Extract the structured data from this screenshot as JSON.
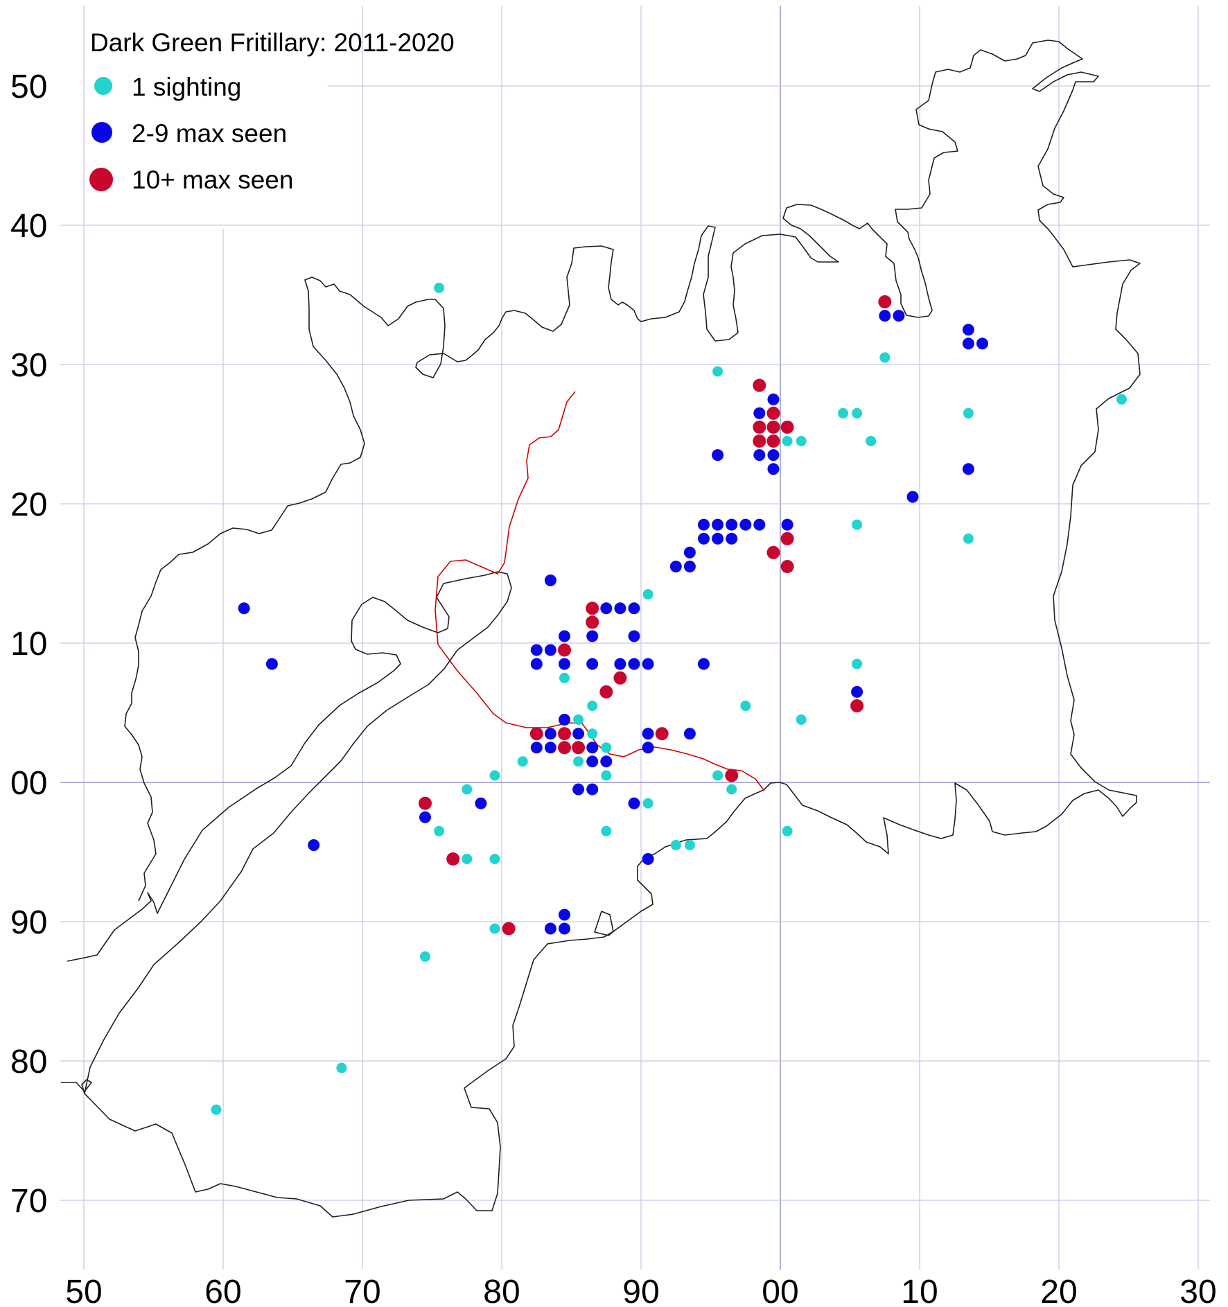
{
  "map": {
    "title": "Dark Green Fritillary:  2011-2020",
    "x_ticks": [
      "50",
      "60",
      "70",
      "80",
      "90",
      "00",
      "10",
      "20",
      "30"
    ],
    "y_ticks": [
      "50",
      "40",
      "30",
      "20",
      "10",
      "00",
      "90",
      "80",
      "70"
    ],
    "categories": [
      {
        "key": "one",
        "label": "1 sighting",
        "color": "#22d3d0"
      },
      {
        "key": "few",
        "label": "2-9 max seen",
        "color": "#0a07e6"
      },
      {
        "key": "many",
        "label": "10+ max seen",
        "color": "#c8072e"
      }
    ],
    "grid_color": "#c8cbe6",
    "boundary_color": "#222222",
    "county_line_color": "#d00000",
    "records": {
      "one": [
        [
          75.5,
          35.5
        ],
        [
          95.5,
          29.5
        ],
        [
          107.5,
          30.5
        ],
        [
          104.5,
          26.5
        ],
        [
          105.5,
          26.5
        ],
        [
          106.5,
          24.5
        ],
        [
          113.5,
          26.5
        ],
        [
          124.5,
          27.5
        ],
        [
          100.5,
          24.5
        ],
        [
          101.5,
          24.5
        ],
        [
          105.5,
          18.5
        ],
        [
          113.5,
          17.5
        ],
        [
          90.5,
          13.5
        ],
        [
          84.5,
          7.5
        ],
        [
          86.5,
          5.5
        ],
        [
          85.5,
          4.5
        ],
        [
          86.5,
          3.5
        ],
        [
          87.5,
          2.5
        ],
        [
          81.5,
          1.5
        ],
        [
          85.5,
          1.5
        ],
        [
          87.5,
          0.5
        ],
        [
          79.5,
          0.5
        ],
        [
          77.5,
          -0.5
        ],
        [
          75.5,
          -3.5
        ],
        [
          77.5,
          -5.5
        ],
        [
          79.5,
          -5.5
        ],
        [
          87.5,
          -3.5
        ],
        [
          90.5,
          -1.5
        ],
        [
          92.5,
          -4.5
        ],
        [
          93.5,
          -4.5
        ],
        [
          95.5,
          0.5
        ],
        [
          96.5,
          -0.5
        ],
        [
          97.5,
          5.5
        ],
        [
          101.5,
          4.5
        ],
        [
          105.5,
          8.5
        ],
        [
          100.5,
          -3.5
        ],
        [
          79.5,
          -10.5
        ],
        [
          74.5,
          -12.5
        ],
        [
          68.5,
          -20.5
        ],
        [
          59.5,
          -23.5
        ]
      ],
      "few": [
        [
          107.5,
          33.5
        ],
        [
          108.5,
          33.5
        ],
        [
          113.5,
          32.5
        ],
        [
          113.5,
          31.5
        ],
        [
          114.5,
          31.5
        ],
        [
          99.5,
          27.5
        ],
        [
          98.5,
          26.5
        ],
        [
          98.5,
          23.5
        ],
        [
          99.5,
          23.5
        ],
        [
          99.5,
          22.5
        ],
        [
          95.5,
          23.5
        ],
        [
          113.5,
          22.5
        ],
        [
          109.5,
          20.5
        ],
        [
          94.5,
          18.5
        ],
        [
          95.5,
          18.5
        ],
        [
          96.5,
          18.5
        ],
        [
          97.5,
          18.5
        ],
        [
          98.5,
          18.5
        ],
        [
          100.5,
          18.5
        ],
        [
          94.5,
          17.5
        ],
        [
          95.5,
          17.5
        ],
        [
          96.5,
          17.5
        ],
        [
          93.5,
          16.5
        ],
        [
          92.5,
          15.5
        ],
        [
          93.5,
          15.5
        ],
        [
          83.5,
          14.5
        ],
        [
          86.5,
          12.5
        ],
        [
          87.5,
          12.5
        ],
        [
          88.5,
          12.5
        ],
        [
          89.5,
          12.5
        ],
        [
          84.5,
          10.5
        ],
        [
          86.5,
          10.5
        ],
        [
          89.5,
          10.5
        ],
        [
          82.5,
          9.5
        ],
        [
          83.5,
          9.5
        ],
        [
          82.5,
          8.5
        ],
        [
          84.5,
          8.5
        ],
        [
          86.5,
          8.5
        ],
        [
          88.5,
          8.5
        ],
        [
          89.5,
          8.5
        ],
        [
          90.5,
          8.5
        ],
        [
          94.5,
          8.5
        ],
        [
          105.5,
          6.5
        ],
        [
          84.5,
          4.5
        ],
        [
          83.5,
          3.5
        ],
        [
          85.5,
          3.5
        ],
        [
          90.5,
          3.5
        ],
        [
          93.5,
          3.5
        ],
        [
          82.5,
          2.5
        ],
        [
          83.5,
          2.5
        ],
        [
          86.5,
          2.5
        ],
        [
          90.5,
          2.5
        ],
        [
          86.5,
          1.5
        ],
        [
          87.5,
          1.5
        ],
        [
          85.5,
          -0.5
        ],
        [
          86.5,
          -0.5
        ],
        [
          78.5,
          -1.5
        ],
        [
          89.5,
          -1.5
        ],
        [
          74.5,
          -2.5
        ],
        [
          66.5,
          -4.5
        ],
        [
          90.5,
          -5.5
        ],
        [
          84.5,
          -9.5
        ],
        [
          83.5,
          -10.5
        ],
        [
          84.5,
          -10.5
        ],
        [
          61.5,
          12.5
        ],
        [
          63.5,
          8.5
        ]
      ],
      "many": [
        [
          107.5,
          34.5
        ],
        [
          98.5,
          28.5
        ],
        [
          99.5,
          26.5
        ],
        [
          98.5,
          25.5
        ],
        [
          99.5,
          25.5
        ],
        [
          100.5,
          25.5
        ],
        [
          98.5,
          24.5
        ],
        [
          99.5,
          24.5
        ],
        [
          100.5,
          17.5
        ],
        [
          99.5,
          16.5
        ],
        [
          100.5,
          15.5
        ],
        [
          86.5,
          12.5
        ],
        [
          86.5,
          11.5
        ],
        [
          84.5,
          9.5
        ],
        [
          88.5,
          7.5
        ],
        [
          87.5,
          6.5
        ],
        [
          82.5,
          3.5
        ],
        [
          84.5,
          3.5
        ],
        [
          91.5,
          3.5
        ],
        [
          84.5,
          2.5
        ],
        [
          85.5,
          2.5
        ],
        [
          96.5,
          0.5
        ],
        [
          74.5,
          -1.5
        ],
        [
          76.5,
          -5.5
        ],
        [
          80.5,
          -10.5
        ],
        [
          105.5,
          5.5
        ]
      ]
    }
  }
}
